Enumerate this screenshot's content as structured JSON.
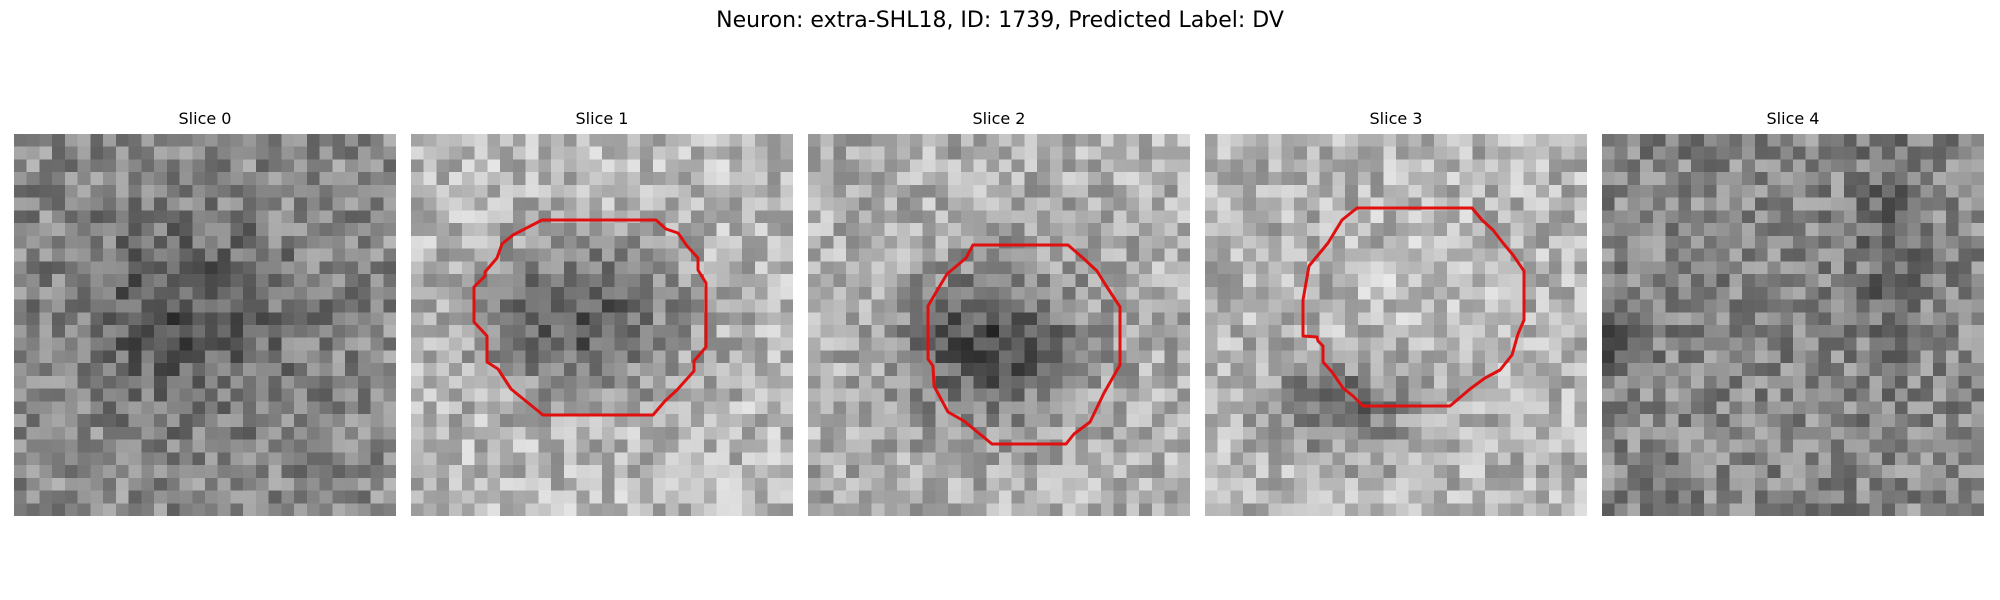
{
  "figure": {
    "title": "Neuron: extra-SHL18, ID: 1739, Predicted Label: DV"
  },
  "panels": [
    {
      "title": "Slice 0",
      "has_contour": false
    },
    {
      "title": "Slice 1",
      "has_contour": true
    },
    {
      "title": "Slice 2",
      "has_contour": true
    },
    {
      "title": "Slice 3",
      "has_contour": true
    },
    {
      "title": "Slice 4",
      "has_contour": false
    }
  ],
  "colors": {
    "contour": "#e01010",
    "background": "#ffffff"
  },
  "colormap": "gray"
}
